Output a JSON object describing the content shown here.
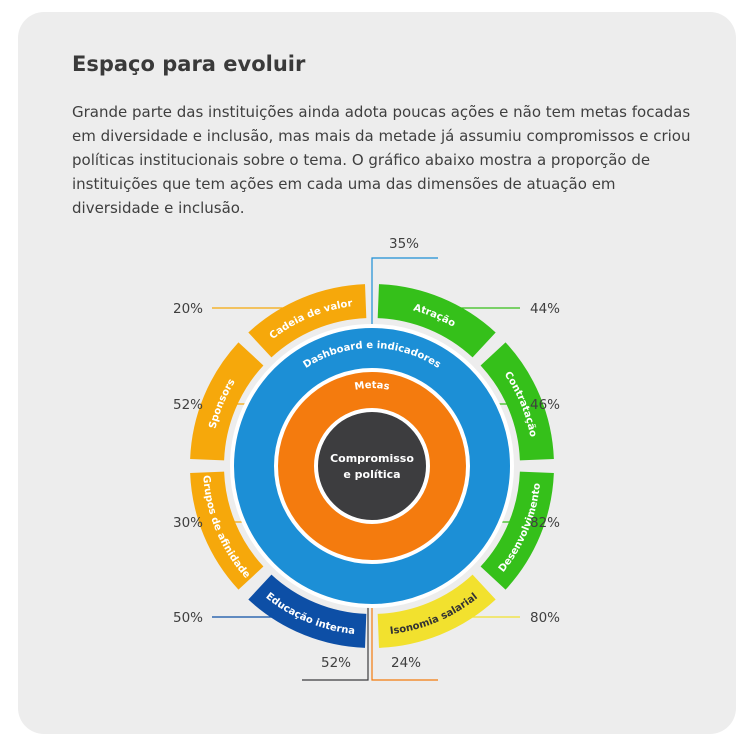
{
  "title": "Espaço para evoluir",
  "description": "Grande parte das instituições ainda adota poucas ações e não tem metas focadas em diversidade e inclusão, mas mais da metade já assumiu compromissos e criou políticas institucionais sobre o tema. O gráfico abaixo mostra a proporção de instituições que tem ações em cada uma das dimensões de atuação em diversidade e inclusão.",
  "chart_data": {
    "type": "radial-diagram",
    "center": {
      "label_line1": "Compromisso",
      "label_line2": "e política",
      "value": "52%",
      "color": "#3d3d3f"
    },
    "middle_ring": {
      "label": "Metas",
      "value": "24%",
      "color": "#f47b0e"
    },
    "inner_ring": {
      "label": "Dashboard e indicadores",
      "value": "35%",
      "color": "#1c8fd6"
    },
    "outer_segments": [
      {
        "label": "Atração",
        "value": "44%",
        "color": "#35c01a"
      },
      {
        "label": "Contratação",
        "value": "46%",
        "color": "#35c01a"
      },
      {
        "label": "Desenvolvimento",
        "value": "82%",
        "color": "#35c01a"
      },
      {
        "label": "Isonomia salarial",
        "value": "80%",
        "color": "#f2e12e"
      },
      {
        "label": "Educação interna",
        "value": "50%",
        "color": "#0d4fa6"
      },
      {
        "label": "Grupos de afinidade",
        "value": "30%",
        "color": "#f6a80b"
      },
      {
        "label": "Sponsors",
        "value": "52%",
        "color": "#f6a80b"
      },
      {
        "label": "Cadeia de valor",
        "value": "20%",
        "color": "#f6a80b"
      }
    ]
  }
}
